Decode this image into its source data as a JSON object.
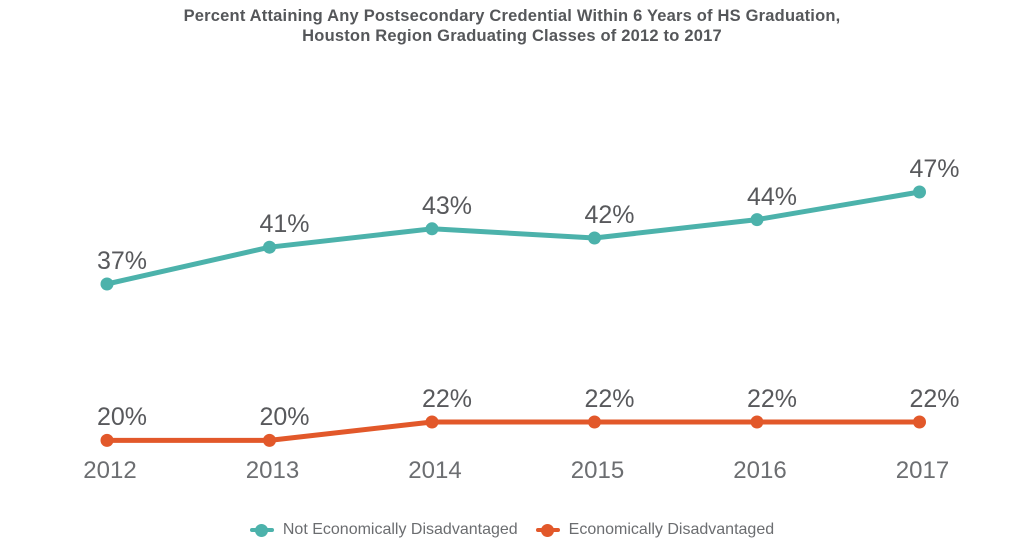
{
  "title": {
    "line1": "Percent Attaining Any Postsecondary Credential Within 6 Years of HS Graduation,",
    "line2": "Houston Region Graduating Classes of 2012 to 2017"
  },
  "chart_data": {
    "type": "line",
    "title": "Percent Attaining Any Postsecondary Credential Within 6 Years of HS Graduation, Houston Region Graduating Classes of 2012 to 2017",
    "categories": [
      "2012",
      "2013",
      "2014",
      "2015",
      "2016",
      "2017"
    ],
    "series": [
      {
        "name": "Not Economically Disadvantaged",
        "color": "#4CB2AB",
        "values": [
          37,
          41,
          43,
          42,
          44,
          47
        ],
        "labels": [
          "37%",
          "41%",
          "43%",
          "42%",
          "44%",
          "47%"
        ]
      },
      {
        "name": "Economically Disadvantaged",
        "color": "#E2582A",
        "values": [
          20,
          20,
          22,
          22,
          22,
          22
        ],
        "labels": [
          "20%",
          "20%",
          "22%",
          "22%",
          "22%",
          "22%"
        ]
      }
    ],
    "xlabel": "",
    "ylabel": "",
    "ylim": [
      0,
      50
    ],
    "grid": false,
    "axes_visible": false,
    "data_labels": true,
    "legend_position": "bottom"
  },
  "colors": {
    "title_text": "#55575A",
    "data_label_text": "#58595C",
    "axis_label_text": "#6C6E71",
    "legend_text": "#6B6D70",
    "background": "#FFFFFF"
  }
}
